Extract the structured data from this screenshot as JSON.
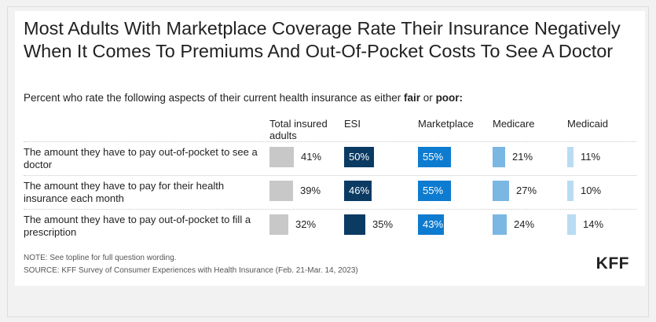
{
  "title": "Most Adults With Marketplace Coverage Rate Their Insurance Negatively When It Comes To Premiums And Out-Of-Pocket Costs To See A Doctor",
  "subtitle_pre": "Percent who rate the following aspects of their current health insurance as either ",
  "subtitle_b1": "fair",
  "subtitle_mid": " or ",
  "subtitle_b2": "poor:",
  "note": "NOTE: See topline for full question wording.",
  "source": "SOURCE: KFF Survey of Consumer Experiences with Health Insurance (Feb. 21-Mar. 14, 2023)",
  "logo": "KFF",
  "chart_data": {
    "type": "table",
    "columns": [
      "Total insured adults",
      "ESI",
      "Marketplace",
      "Medicare",
      "Medicaid"
    ],
    "column_colors": [
      "#c8c8c8",
      "#0b3a63",
      "#0d7bd0",
      "#7ab8e3",
      "#b9dcf2"
    ],
    "label_inside": [
      false,
      true,
      true,
      false,
      false
    ],
    "inside_text_color": "#ffffff",
    "rows": [
      {
        "label": "The amount they have to pay out-of-pocket to see a doctor",
        "values": [
          41,
          50,
          55,
          21,
          11
        ],
        "display": [
          "41%",
          "50%",
          "55%",
          "21%",
          "11%"
        ]
      },
      {
        "label": "The amount they have to pay for their health insurance each month",
        "values": [
          39,
          46,
          55,
          27,
          10
        ],
        "display": [
          "39%",
          "46%",
          "55%",
          "27%",
          "10%"
        ]
      },
      {
        "label": "The amount they have to pay out-of-pocket to fill a prescription",
        "values": [
          32,
          35,
          43,
          24,
          14
        ],
        "display": [
          "32%",
          "35%",
          "43%",
          "24%",
          "14%"
        ]
      }
    ]
  }
}
